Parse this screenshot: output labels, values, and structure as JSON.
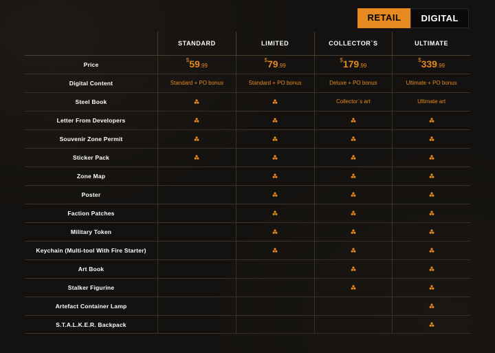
{
  "tabs": {
    "retail": "RETAIL",
    "digital": "DIGITAL"
  },
  "colors": {
    "accent": "#e68a1f",
    "bg": "#141210",
    "border": "#3a3226",
    "text": "#ffffff"
  },
  "editions": [
    {
      "name": "STANDARD",
      "price_major": "59",
      "price_minor": ".99",
      "digital_content": "Standard + PO bonus",
      "steel_book": ""
    },
    {
      "name": "LIMITED",
      "price_major": "79",
      "price_minor": ".99",
      "digital_content": "Standard + PO bonus",
      "steel_book": ""
    },
    {
      "name": "COLLECTOR`S",
      "price_major": "179",
      "price_minor": ".99",
      "digital_content": "Deluxe + PO bonus",
      "steel_book": "Collector`s art"
    },
    {
      "name": "ULTIMATE",
      "price_major": "339",
      "price_minor": ".99",
      "digital_content": "Ultimate + PO bonus",
      "steel_book": "Ultimate art"
    }
  ],
  "row_labels": {
    "price": "Price",
    "digital_content": "Digital Content",
    "steel_book": "Steel Book",
    "letter": "Letter From Developers",
    "permit": "Souvenir Zone Permit",
    "sticker": "Sticker Pack",
    "map": "Zone Map",
    "poster": "Poster",
    "patches": "Faction Patches",
    "token": "Military Token",
    "keychain": "Keychain (Multi-tool With Fire Starter)",
    "artbook": "Art Book",
    "figurine": "Stalker Figurine",
    "lamp": "Artefact Container Lamp",
    "backpack": "S.T.A.L.K.E.R. Backpack"
  },
  "feature_rows": [
    {
      "key": "steel_book_icon",
      "checks": [
        true,
        true,
        false,
        false
      ]
    },
    {
      "key": "letter",
      "checks": [
        true,
        true,
        true,
        true
      ]
    },
    {
      "key": "permit",
      "checks": [
        true,
        true,
        true,
        true
      ]
    },
    {
      "key": "sticker",
      "checks": [
        true,
        true,
        true,
        true
      ]
    },
    {
      "key": "map",
      "checks": [
        false,
        true,
        true,
        true
      ]
    },
    {
      "key": "poster",
      "checks": [
        false,
        true,
        true,
        true
      ]
    },
    {
      "key": "patches",
      "checks": [
        false,
        true,
        true,
        true
      ]
    },
    {
      "key": "token",
      "checks": [
        false,
        true,
        true,
        true
      ]
    },
    {
      "key": "keychain",
      "checks": [
        false,
        true,
        true,
        true
      ]
    },
    {
      "key": "artbook",
      "checks": [
        false,
        false,
        true,
        true
      ]
    },
    {
      "key": "figurine",
      "checks": [
        false,
        false,
        true,
        true
      ]
    },
    {
      "key": "lamp",
      "checks": [
        false,
        false,
        false,
        true
      ]
    },
    {
      "key": "backpack",
      "checks": [
        false,
        false,
        false,
        true
      ]
    }
  ]
}
